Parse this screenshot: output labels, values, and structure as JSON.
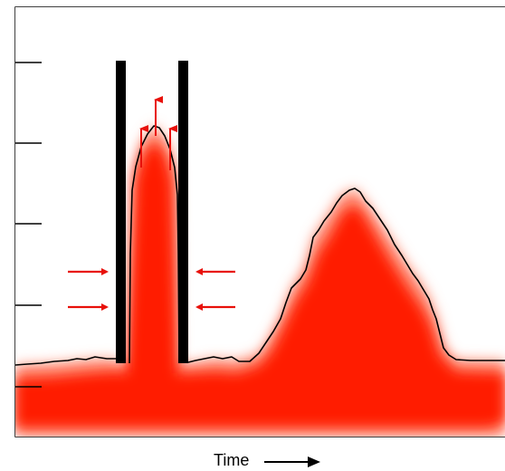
{
  "x_axis": {
    "label": "Time",
    "arrow_icon": "right-arrow-icon"
  },
  "colors": {
    "fill_core": "#ff1a00",
    "fill_edge": "#ffffff",
    "outline": "#000000",
    "barrier": "#000000",
    "arrow": "#e8100a"
  },
  "y_axis": {
    "tick_count": 5
  },
  "features": {
    "compressed_peak": "compressed-peak",
    "broad_peak": "broad-peak",
    "compression_walls": 2,
    "inward_arrows_per_side": 2,
    "upward_arrows": 3
  }
}
